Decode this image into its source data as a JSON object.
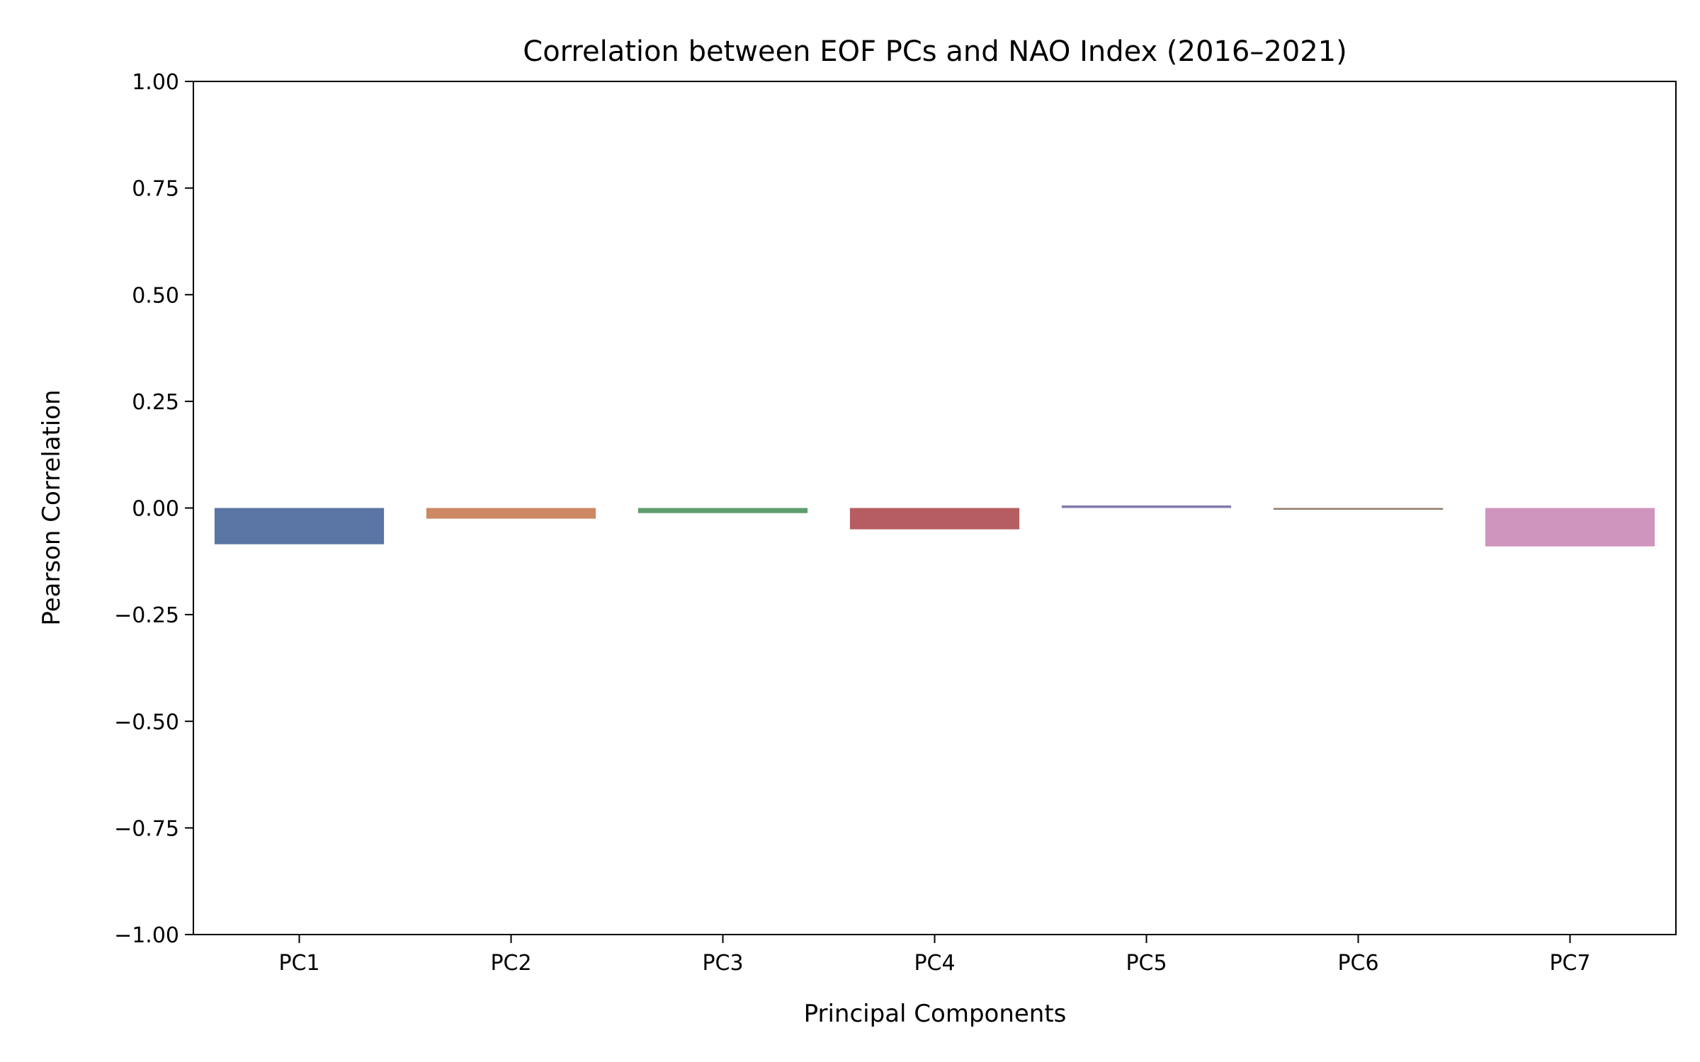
{
  "chart_data": {
    "type": "bar",
    "title": "Correlation between EOF PCs and NAO Index (2016–2021)",
    "xlabel": "Principal Components",
    "ylabel": "Pearson Correlation",
    "categories": [
      "PC1",
      "PC2",
      "PC3",
      "PC4",
      "PC5",
      "PC6",
      "PC7"
    ],
    "values": [
      -0.085,
      -0.025,
      -0.012,
      -0.05,
      0.006,
      -0.004,
      -0.09
    ],
    "colors": [
      "#5975a4",
      "#cc8963",
      "#5f9e6e",
      "#b55d60",
      "#857aab",
      "#8d7866",
      "#d095bf"
    ],
    "ylim": [
      -1.0,
      1.0
    ],
    "yticks": [
      1.0,
      0.75,
      0.5,
      0.25,
      0.0,
      -0.25,
      -0.5,
      -0.75,
      -1.0
    ],
    "ytick_labels": [
      "1.00",
      "0.75",
      "0.50",
      "0.25",
      "0.00",
      "−0.25",
      "−0.50",
      "−0.75",
      "−1.00"
    ],
    "grid": false,
    "legend": "none"
  }
}
